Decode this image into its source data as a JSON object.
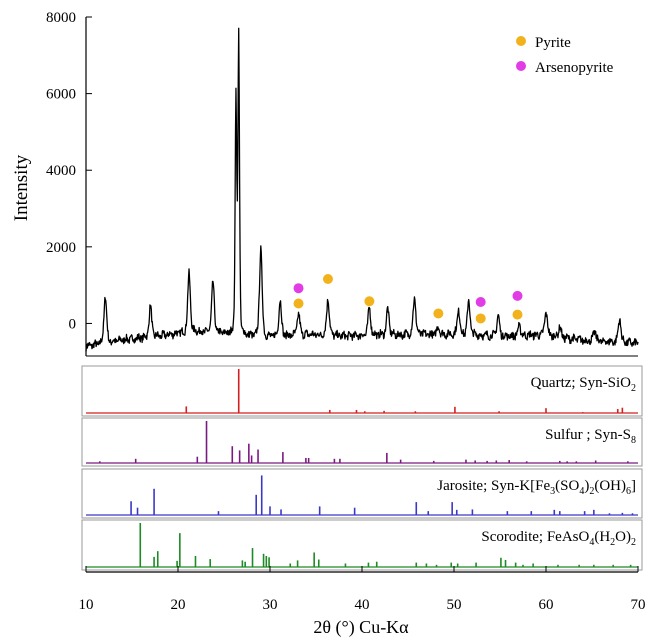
{
  "chart_data": {
    "type": "line",
    "xlabel": "2θ (°) Cu-Kα",
    "xlim": [
      10,
      70
    ],
    "x_ticks": [
      "10",
      "20",
      "30",
      "40",
      "50",
      "60",
      "70"
    ],
    "main_pattern": {
      "ylabel": "Intensity",
      "ylim": [
        -850,
        8000
      ],
      "y_ticks": [
        "8000",
        "6000",
        "4000",
        "2000",
        "0"
      ],
      "line_color": "#000000",
      "baseline": [
        [
          10,
          -600
        ],
        [
          12,
          -520
        ],
        [
          14,
          -430
        ],
        [
          16,
          -380
        ],
        [
          18,
          -330
        ],
        [
          20,
          -260
        ],
        [
          22,
          -210
        ],
        [
          24,
          -250
        ],
        [
          26,
          -280
        ],
        [
          28,
          -330
        ],
        [
          30,
          -350
        ],
        [
          32,
          -320
        ],
        [
          34,
          -290
        ],
        [
          36,
          -310
        ],
        [
          38,
          -330
        ],
        [
          40,
          -310
        ],
        [
          42,
          -300
        ],
        [
          44,
          -300
        ],
        [
          46,
          -280
        ],
        [
          48,
          -290
        ],
        [
          50,
          -280
        ],
        [
          52,
          -300
        ],
        [
          54,
          -320
        ],
        [
          56,
          -330
        ],
        [
          58,
          -310
        ],
        [
          60,
          -300
        ],
        [
          62,
          -380
        ],
        [
          64,
          -440
        ],
        [
          66,
          -470
        ],
        [
          68,
          -490
        ],
        [
          70,
          -520
        ]
      ],
      "peaks": [
        {
          "x": 12.1,
          "y": 730
        },
        {
          "x": 17.0,
          "y": 440
        },
        {
          "x": 21.2,
          "y": 1300
        },
        {
          "x": 23.8,
          "y": 1060
        },
        {
          "x": 26.6,
          "y": 7450
        },
        {
          "x": 26.3,
          "y": 6000
        },
        {
          "x": 29.0,
          "y": 1950
        },
        {
          "x": 31.1,
          "y": 600
        },
        {
          "x": 33.1,
          "y": 250
        },
        {
          "x": 36.3,
          "y": 660
        },
        {
          "x": 40.8,
          "y": 400
        },
        {
          "x": 42.8,
          "y": 380
        },
        {
          "x": 45.7,
          "y": 680
        },
        {
          "x": 48.3,
          "y": -80
        },
        {
          "x": 50.5,
          "y": 350
        },
        {
          "x": 51.6,
          "y": 600
        },
        {
          "x": 54.8,
          "y": 200
        },
        {
          "x": 57.1,
          "y": -60
        },
        {
          "x": 60.0,
          "y": 310
        },
        {
          "x": 61.5,
          "y": -100
        },
        {
          "x": 65.3,
          "y": -200
        },
        {
          "x": 68.0,
          "y": 130
        }
      ],
      "markers": {
        "pyrite": [
          {
            "x": 33.1,
            "y": 520
          },
          {
            "x": 36.3,
            "y": 1160
          },
          {
            "x": 40.8,
            "y": 580
          },
          {
            "x": 48.3,
            "y": 260
          },
          {
            "x": 52.9,
            "y": 130
          },
          {
            "x": 56.9,
            "y": 230
          }
        ],
        "arsenopyrite": [
          {
            "x": 33.1,
            "y": 920
          },
          {
            "x": 52.9,
            "y": 560
          },
          {
            "x": 56.9,
            "y": 720
          }
        ]
      },
      "legend": [
        {
          "label": "Pyrite",
          "color": "#f2b21c"
        },
        {
          "label": "Arsenopyrite",
          "color": "#e23ce6"
        }
      ],
      "legend_position": "top-right"
    },
    "reference_patterns": [
      {
        "label": "Quartz; Syn-SiO₂",
        "color": "#d42020",
        "sticks": [
          [
            20.9,
            0.15
          ],
          [
            26.6,
            1.0
          ],
          [
            36.5,
            0.07
          ],
          [
            39.4,
            0.07
          ],
          [
            40.3,
            0.04
          ],
          [
            42.4,
            0.05
          ],
          [
            45.8,
            0.04
          ],
          [
            50.1,
            0.14
          ],
          [
            54.9,
            0.04
          ],
          [
            60.0,
            0.11
          ],
          [
            64.0,
            0.02
          ],
          [
            67.8,
            0.09
          ],
          [
            68.3,
            0.12
          ]
        ]
      },
      {
        "label": "Sulfur ; Syn-S₈",
        "color": "#7a1a80",
        "sticks": [
          [
            11.5,
            0.04
          ],
          [
            15.4,
            0.1
          ],
          [
            22.1,
            0.15
          ],
          [
            23.1,
            1.0
          ],
          [
            25.9,
            0.4
          ],
          [
            26.7,
            0.3
          ],
          [
            27.7,
            0.46
          ],
          [
            28.0,
            0.18
          ],
          [
            28.7,
            0.32
          ],
          [
            31.4,
            0.26
          ],
          [
            33.9,
            0.12
          ],
          [
            34.2,
            0.12
          ],
          [
            37.0,
            0.1
          ],
          [
            37.6,
            0.1
          ],
          [
            42.7,
            0.24
          ],
          [
            44.2,
            0.08
          ],
          [
            47.8,
            0.05
          ],
          [
            51.3,
            0.08
          ],
          [
            52.3,
            0.06
          ],
          [
            53.6,
            0.05
          ],
          [
            54.6,
            0.06
          ],
          [
            56.0,
            0.07
          ],
          [
            57.9,
            0.04
          ],
          [
            61.5,
            0.05
          ],
          [
            62.3,
            0.04
          ],
          [
            63.3,
            0.04
          ],
          [
            65.4,
            0.06
          ],
          [
            68.9,
            0.04
          ]
        ]
      },
      {
        "label": "Jarosite; Syn-K[Fe₃(SO₄)₂(OH)₆]",
        "color": "#3a38c8",
        "sticks": [
          [
            14.9,
            0.32
          ],
          [
            15.6,
            0.17
          ],
          [
            17.4,
            0.61
          ],
          [
            24.4,
            0.09
          ],
          [
            28.5,
            0.47
          ],
          [
            29.1,
            0.92
          ],
          [
            30.0,
            0.2
          ],
          [
            31.2,
            0.13
          ],
          [
            35.4,
            0.2
          ],
          [
            39.2,
            0.17
          ],
          [
            45.9,
            0.3
          ],
          [
            47.2,
            0.09
          ],
          [
            49.8,
            0.3
          ],
          [
            50.3,
            0.12
          ],
          [
            52.0,
            0.13
          ],
          [
            55.8,
            0.09
          ],
          [
            58.4,
            0.09
          ],
          [
            60.9,
            0.12
          ],
          [
            61.5,
            0.09
          ],
          [
            64.2,
            0.09
          ],
          [
            65.2,
            0.12
          ],
          [
            66.9,
            0.04
          ],
          [
            68.3,
            0.05
          ],
          [
            69.4,
            0.04
          ]
        ]
      },
      {
        "label": "Scorodite; FeAsO₄(H₂O)₂",
        "color": "#1e8a24",
        "sticks": [
          [
            15.9,
            1.0
          ],
          [
            17.4,
            0.23
          ],
          [
            17.8,
            0.36
          ],
          [
            19.9,
            0.14
          ],
          [
            20.2,
            0.77
          ],
          [
            21.9,
            0.25
          ],
          [
            23.5,
            0.18
          ],
          [
            27.0,
            0.15
          ],
          [
            27.3,
            0.12
          ],
          [
            28.1,
            0.43
          ],
          [
            29.3,
            0.3
          ],
          [
            29.6,
            0.25
          ],
          [
            29.9,
            0.22
          ],
          [
            32.2,
            0.08
          ],
          [
            33.0,
            0.15
          ],
          [
            34.8,
            0.33
          ],
          [
            35.3,
            0.17
          ],
          [
            38.2,
            0.08
          ],
          [
            40.7,
            0.1
          ],
          [
            41.6,
            0.12
          ],
          [
            45.9,
            0.1
          ],
          [
            47.0,
            0.08
          ],
          [
            48.1,
            0.05
          ],
          [
            49.7,
            0.1
          ],
          [
            50.4,
            0.08
          ],
          [
            52.4,
            0.1
          ],
          [
            55.1,
            0.21
          ],
          [
            55.6,
            0.16
          ],
          [
            56.7,
            0.1
          ],
          [
            57.5,
            0.05
          ],
          [
            58.6,
            0.08
          ],
          [
            61.3,
            0.05
          ],
          [
            63.6,
            0.05
          ],
          [
            65.2,
            0.05
          ],
          [
            67.3,
            0.05
          ],
          [
            69.2,
            0.05
          ]
        ]
      }
    ]
  }
}
